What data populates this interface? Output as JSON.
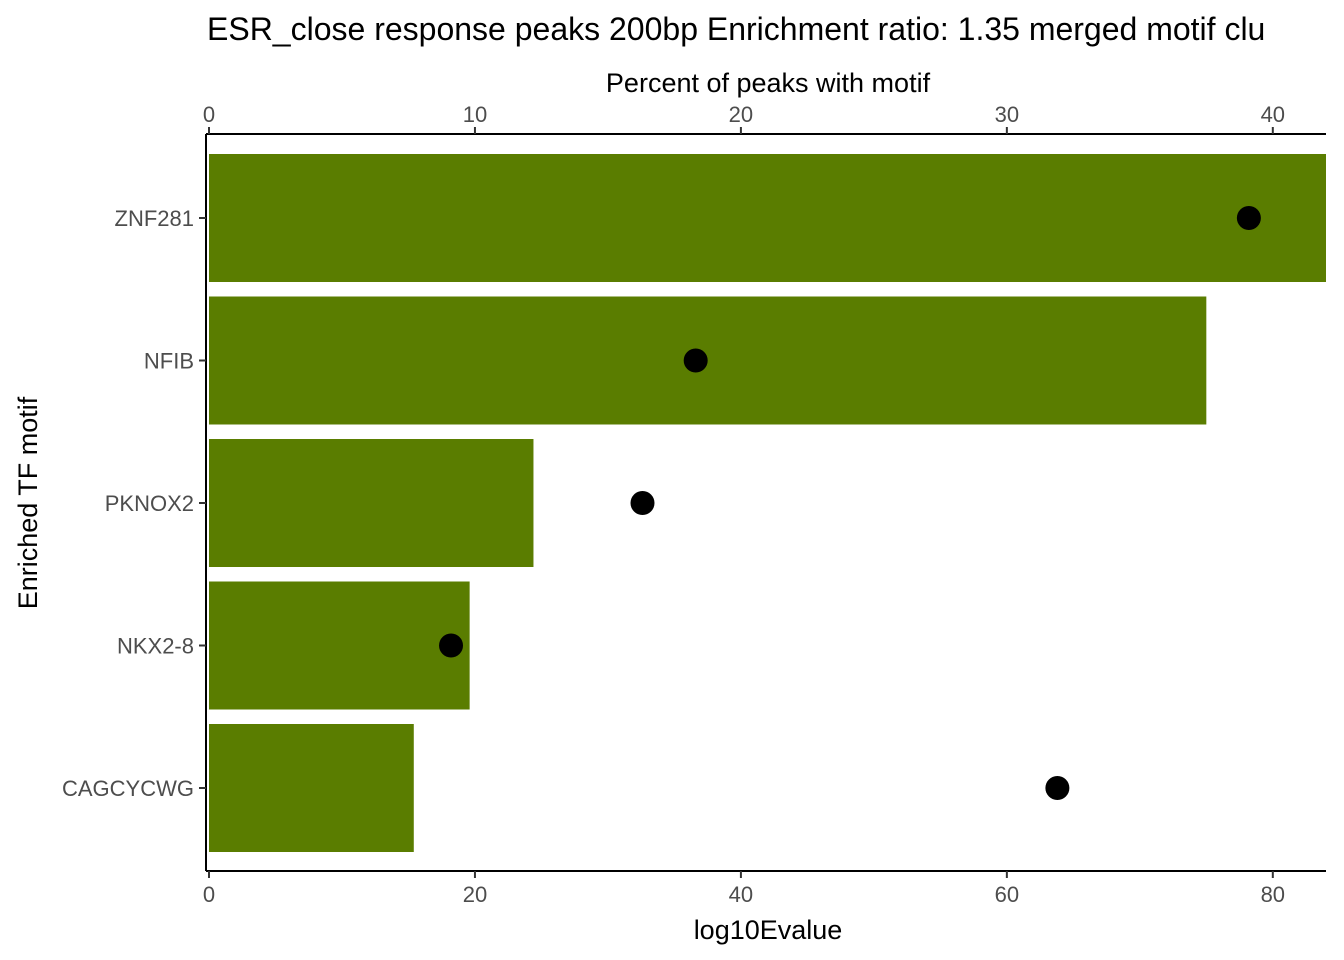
{
  "chart_data": {
    "type": "bar",
    "title": "ESR_close response peaks 200bp Enrichment ratio: 1.35  merged motif clu",
    "xlabel": "log10Evalue",
    "ylabel": "Enriched TF motif",
    "secondary_xlabel": "Percent of peaks with motif",
    "xlim": [
      0,
      84
    ],
    "secondary_xlim": [
      0,
      42
    ],
    "x_ticks": [
      "0",
      "20",
      "40",
      "60",
      "80"
    ],
    "secondary_x_ticks": [
      "0",
      "10",
      "20",
      "30",
      "40"
    ],
    "categories": [
      "ZNF281",
      "NFIB",
      "PKNOX2",
      "NKX2-8",
      "CAGCYCWG"
    ],
    "series": [
      {
        "type": "bar",
        "axis": "bottom",
        "color": "#5a7d00",
        "values": [
          84,
          75,
          24.4,
          19.6,
          15.4
        ]
      },
      {
        "type": "point",
        "axis": "top",
        "color": "#000000",
        "values": [
          39.1,
          18.3,
          16.3,
          9.1,
          31.9
        ]
      }
    ],
    "grid": false,
    "legend": "none"
  }
}
